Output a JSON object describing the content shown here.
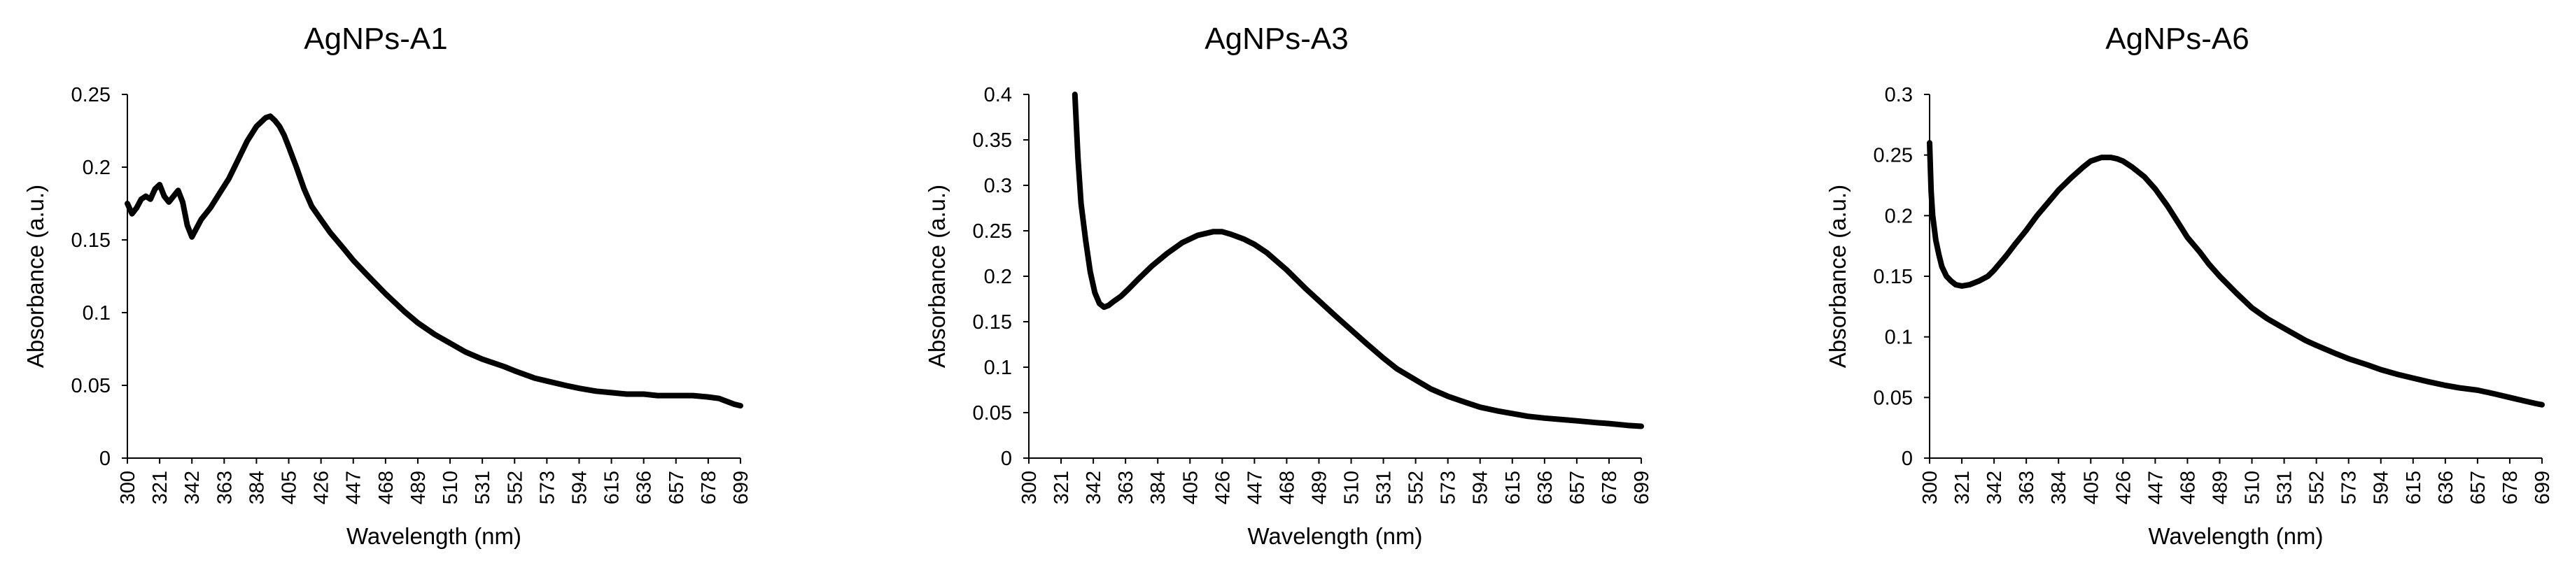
{
  "chart_data": [
    {
      "type": "line",
      "title": "AgNPs-A1",
      "xlabel": "Wavelength (nm)",
      "ylabel": "Absorbance (a.u.)",
      "xlim": [
        300,
        699
      ],
      "ylim": [
        0,
        0.25
      ],
      "x_tick_labels": [
        "300",
        "321",
        "342",
        "363",
        "384",
        "405",
        "426",
        "447",
        "468",
        "489",
        "510",
        "531",
        "552",
        "573",
        "594",
        "615",
        "636",
        "657",
        "678",
        "699"
      ],
      "y_tick_labels": [
        "0",
        "0.05",
        "0.1",
        "0.15",
        "0.2",
        "0.25"
      ],
      "grid": false,
      "series_color": "#000000",
      "series": [
        {
          "name": "AgNPs-A1",
          "x": [
            300,
            303,
            306,
            309,
            312,
            315,
            318,
            321,
            324,
            327,
            330,
            333,
            336,
            339,
            342,
            348,
            354,
            360,
            366,
            372,
            378,
            384,
            390,
            393,
            396,
            399,
            402,
            405,
            410,
            415,
            420,
            426,
            432,
            440,
            447,
            455,
            468,
            480,
            489,
            500,
            510,
            520,
            531,
            545,
            552,
            565,
            573,
            585,
            594,
            605,
            615,
            625,
            636,
            645,
            657,
            668,
            678,
            685,
            690,
            695,
            699
          ],
          "y": [
            0.175,
            0.168,
            0.172,
            0.178,
            0.18,
            0.178,
            0.185,
            0.188,
            0.18,
            0.176,
            0.18,
            0.184,
            0.176,
            0.16,
            0.152,
            0.164,
            0.172,
            0.182,
            0.192,
            0.205,
            0.218,
            0.228,
            0.234,
            0.235,
            0.232,
            0.228,
            0.222,
            0.214,
            0.2,
            0.185,
            0.173,
            0.164,
            0.155,
            0.145,
            0.136,
            0.127,
            0.113,
            0.101,
            0.093,
            0.085,
            0.079,
            0.073,
            0.068,
            0.063,
            0.06,
            0.055,
            0.053,
            0.05,
            0.048,
            0.046,
            0.045,
            0.044,
            0.044,
            0.043,
            0.043,
            0.043,
            0.042,
            0.041,
            0.039,
            0.037,
            0.036
          ]
        }
      ]
    },
    {
      "type": "line",
      "title": "AgNPs-A3",
      "xlabel": "Wavelength (nm)",
      "ylabel": "Absorbance (a.u.)",
      "xlim": [
        300,
        699
      ],
      "ylim": [
        0,
        0.4
      ],
      "x_tick_labels": [
        "300",
        "321",
        "342",
        "363",
        "384",
        "405",
        "426",
        "447",
        "468",
        "489",
        "510",
        "531",
        "552",
        "573",
        "594",
        "615",
        "636",
        "657",
        "678",
        "699"
      ],
      "y_tick_labels": [
        "0",
        "0.05",
        "0.1",
        "0.15",
        "0.2",
        "0.25",
        "0.3",
        "0.35",
        "0.4"
      ],
      "grid": false,
      "series_color": "#000000",
      "series": [
        {
          "name": "AgNPs-A3",
          "x": [
            330,
            332,
            334,
            337,
            340,
            343,
            346,
            349,
            352,
            355,
            360,
            365,
            372,
            380,
            390,
            400,
            410,
            420,
            426,
            432,
            440,
            447,
            455,
            468,
            480,
            489,
            500,
            510,
            520,
            531,
            540,
            552,
            562,
            573,
            585,
            594,
            605,
            615,
            625,
            636,
            650,
            657,
            670,
            678,
            690,
            699
          ],
          "y": [
            0.4,
            0.33,
            0.28,
            0.24,
            0.205,
            0.182,
            0.17,
            0.166,
            0.168,
            0.172,
            0.178,
            0.186,
            0.198,
            0.211,
            0.225,
            0.237,
            0.245,
            0.249,
            0.249,
            0.246,
            0.241,
            0.235,
            0.226,
            0.207,
            0.187,
            0.173,
            0.156,
            0.141,
            0.126,
            0.11,
            0.098,
            0.086,
            0.076,
            0.068,
            0.061,
            0.056,
            0.052,
            0.049,
            0.046,
            0.044,
            0.042,
            0.041,
            0.039,
            0.038,
            0.036,
            0.035
          ]
        }
      ]
    },
    {
      "type": "line",
      "title": "AgNPs-A6",
      "xlabel": "Wavelength (nm)",
      "ylabel": "Absorbance (a.u.)",
      "xlim": [
        300,
        699
      ],
      "ylim": [
        0,
        0.3
      ],
      "x_tick_labels": [
        "300",
        "321",
        "342",
        "363",
        "384",
        "405",
        "426",
        "447",
        "468",
        "489",
        "510",
        "531",
        "552",
        "573",
        "594",
        "615",
        "636",
        "657",
        "678",
        "699"
      ],
      "y_tick_labels": [
        "0",
        "0.05",
        "0.1",
        "0.15",
        "0.2",
        "0.25",
        "0.3"
      ],
      "grid": false,
      "series_color": "#000000",
      "series": [
        {
          "name": "AgNPs-A6",
          "x": [
            300,
            301,
            302,
            304,
            306,
            308,
            311,
            314,
            317,
            321,
            326,
            332,
            338,
            342,
            350,
            356,
            363,
            370,
            378,
            384,
            392,
            400,
            405,
            412,
            418,
            422,
            426,
            432,
            440,
            447,
            455,
            462,
            468,
            476,
            482,
            489,
            500,
            510,
            520,
            531,
            545,
            552,
            565,
            573,
            585,
            594,
            605,
            615,
            625,
            636,
            645,
            657,
            668,
            678,
            688,
            695,
            699
          ],
          "y": [
            0.26,
            0.22,
            0.2,
            0.18,
            0.168,
            0.158,
            0.15,
            0.146,
            0.143,
            0.142,
            0.143,
            0.146,
            0.15,
            0.155,
            0.167,
            0.177,
            0.188,
            0.2,
            0.212,
            0.221,
            0.231,
            0.24,
            0.245,
            0.248,
            0.248,
            0.247,
            0.245,
            0.24,
            0.232,
            0.222,
            0.208,
            0.194,
            0.182,
            0.17,
            0.16,
            0.15,
            0.136,
            0.124,
            0.115,
            0.107,
            0.097,
            0.093,
            0.086,
            0.082,
            0.077,
            0.073,
            0.069,
            0.066,
            0.063,
            0.06,
            0.058,
            0.056,
            0.053,
            0.05,
            0.047,
            0.045,
            0.044
          ]
        }
      ]
    }
  ]
}
